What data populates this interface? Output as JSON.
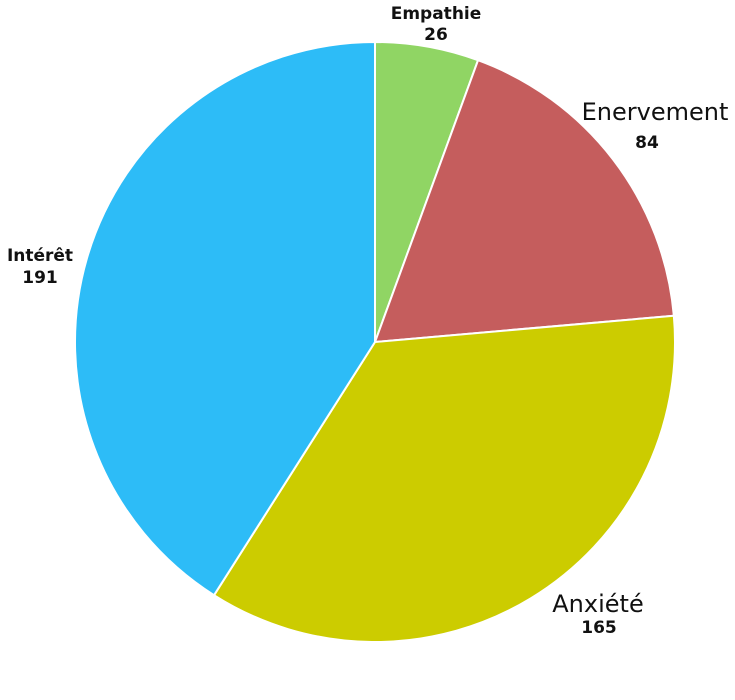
{
  "chart_data": {
    "type": "pie",
    "title": "",
    "slices": [
      {
        "label": "Empathie",
        "value": 26,
        "color": "#90d564"
      },
      {
        "label": "Enervement",
        "value": 84,
        "color": "#c55d5d"
      },
      {
        "label": "Anxiété",
        "value": 165,
        "color": "#cccc00"
      },
      {
        "label": "Intérêt",
        "value": 191,
        "color": "#2dbcf7"
      }
    ],
    "start": "top",
    "direction": "clockwise",
    "legend": "none"
  }
}
